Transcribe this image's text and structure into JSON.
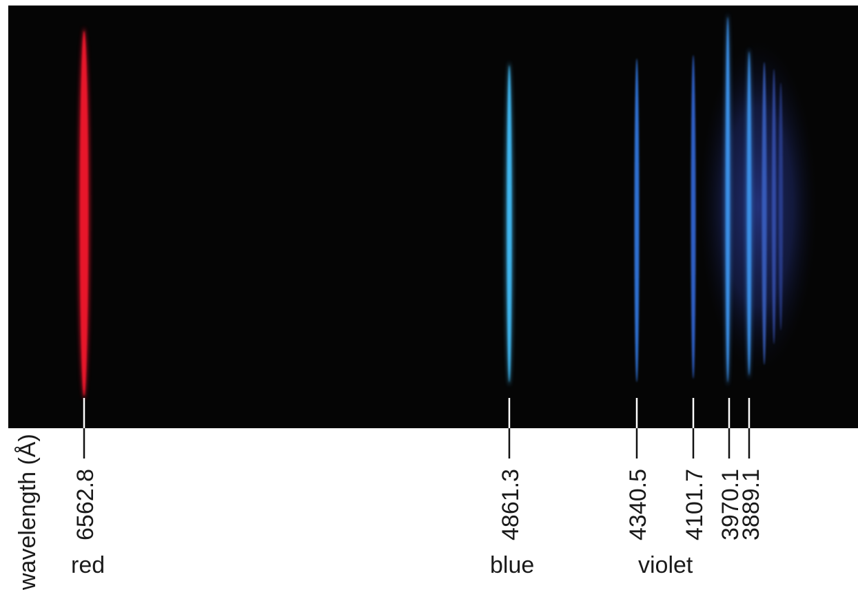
{
  "axis_label": "wavelength (Å)",
  "lines": [
    {
      "wavelength": "6562.8",
      "color": "#e8142a"
    },
    {
      "wavelength": "4861.3",
      "color": "#3fb6ee"
    },
    {
      "wavelength": "4340.5",
      "color": "#2f6fd0"
    },
    {
      "wavelength": "4101.7",
      "color": "#2e5fc4"
    },
    {
      "wavelength": "3970.1",
      "color": "#3a8fe6"
    },
    {
      "wavelength": "3889.1",
      "color": "#3a8fe6"
    }
  ],
  "color_labels": {
    "red": "red",
    "blue": "blue",
    "violet": "violet"
  },
  "colors": {
    "background": "#050505",
    "haze": "#2a3f9a"
  }
}
